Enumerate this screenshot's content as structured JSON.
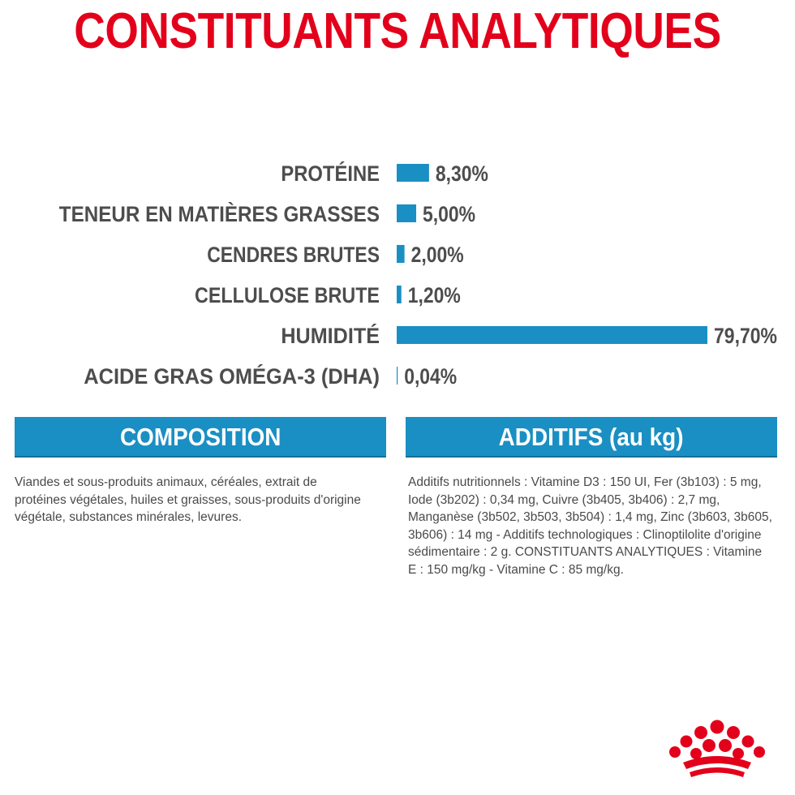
{
  "title": "CONSTITUANTS ANALYTIQUES",
  "chart_data": {
    "type": "bar",
    "orientation": "horizontal",
    "categories": [
      "PROTÉINE",
      "TENEUR EN MATIÈRES GRASSES",
      "CENDRES BRUTES",
      "CELLULOSE BRUTE",
      "HUMIDITÉ",
      "ACIDE GRAS OMÉGA-3 (DHA)"
    ],
    "values": [
      8.3,
      5.0,
      2.0,
      1.2,
      79.7,
      0.04
    ],
    "value_labels": [
      "8,30%",
      "5,00%",
      "2,00%",
      "1,20%",
      "79,70%",
      "0,04%"
    ],
    "xlim": [
      0,
      79.7
    ],
    "grid": false,
    "bar_color": "#1a8fc4",
    "label_color": "#4d4d4d"
  },
  "sections": {
    "composition": {
      "heading": "COMPOSITION",
      "text": "Viandes et sous-produits animaux, céréales, extrait de protéines végétales, huiles et graisses, sous-produits d'origine végétale, substances minérales, levures."
    },
    "additifs": {
      "heading": "ADDITIFS (au kg)",
      "text": "Additifs nutritionnels : Vitamine D3 : 150 UI, Fer (3b103) : 5 mg, Iode (3b202) : 0,34 mg, Cuivre (3b405, 3b406) : 2,7 mg, Manganèse (3b502, 3b503, 3b504) : 1,4 mg, Zinc (3b603, 3b605, 3b606) : 14 mg - Additifs technologiques : Clinoptilolite d'origine sédimentaire : 2 g. CONSTITUANTS ANALYTIQUES : Vitamine E : 150 mg/kg - Vitamine C : 85 mg/kg."
    }
  },
  "colors": {
    "title": "#e3001b",
    "accent_blue": "#1a8fc4",
    "body_text": "#4a4a4a",
    "brand_red": "#e3001b"
  },
  "brand_logo": "royal-crown-logo"
}
